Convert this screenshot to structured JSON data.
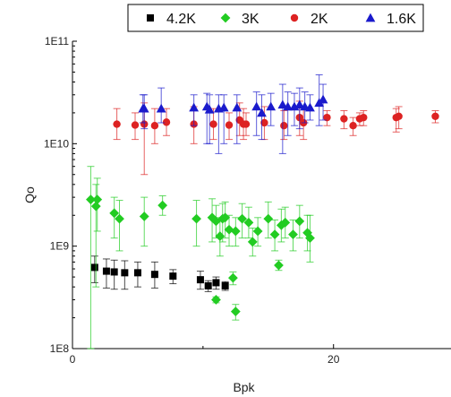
{
  "chart_data": {
    "type": "scatter",
    "xlabel": "Bpk",
    "ylabel": "Qo",
    "xlim": [
      0,
      29
    ],
    "ylim": [
      100000000.0,
      100000000000.0
    ],
    "yscale": "log",
    "x_ticks": [
      0,
      20
    ],
    "x_tick_labels": [
      "0",
      "20"
    ],
    "y_ticks": [
      100000000.0,
      1000000000.0,
      10000000000.0,
      100000000000.0
    ],
    "y_tick_labels": [
      "1E8",
      "1E9",
      "1E10",
      "1E11"
    ],
    "grid": false,
    "legend_position": "top-right",
    "series": [
      {
        "name": "4.2K",
        "marker": "square",
        "color": "#000000",
        "points": [
          {
            "x": 1.7,
            "y": 620000000.0,
            "ylo": 440000000.0,
            "yhi": 800000000.0
          },
          {
            "x": 2.6,
            "y": 570000000.0,
            "ylo": 390000000.0,
            "yhi": 750000000.0
          },
          {
            "x": 3.2,
            "y": 560000000.0,
            "ylo": 380000000.0,
            "yhi": 730000000.0
          },
          {
            "x": 4.0,
            "y": 550000000.0,
            "ylo": 380000000.0,
            "yhi": 720000000.0
          },
          {
            "x": 5.0,
            "y": 550000000.0,
            "ylo": 400000000.0,
            "yhi": 700000000.0
          },
          {
            "x": 6.3,
            "y": 530000000.0,
            "ylo": 390000000.0,
            "yhi": 700000000.0
          },
          {
            "x": 7.7,
            "y": 510000000.0,
            "ylo": 430000000.0,
            "yhi": 590000000.0
          },
          {
            "x": 9.8,
            "y": 470000000.0,
            "ylo": 380000000.0,
            "yhi": 570000000.0
          },
          {
            "x": 10.4,
            "y": 410000000.0,
            "ylo": 360000000.0,
            "yhi": 460000000.0
          },
          {
            "x": 11.0,
            "y": 440000000.0,
            "ylo": 380000000.0,
            "yhi": 500000000.0
          },
          {
            "x": 11.7,
            "y": 410000000.0,
            "ylo": 370000000.0,
            "yhi": 450000000.0
          }
        ]
      },
      {
        "name": "3K",
        "marker": "diamond",
        "color": "#22cc22",
        "points": [
          {
            "x": 1.4,
            "y": 2850000000.0,
            "ylo": 100000000.0,
            "yhi": 6000000000.0
          },
          {
            "x": 1.8,
            "y": 2450000000.0,
            "ylo": 400000000.0,
            "yhi": 4000000000.0
          },
          {
            "x": 1.9,
            "y": 2850000000.0,
            "ylo": 1400000000.0,
            "yhi": 4600000000.0
          },
          {
            "x": 3.2,
            "y": 2100000000.0,
            "ylo": 1200000000.0,
            "yhi": 3000000000.0
          },
          {
            "x": 3.6,
            "y": 1850000000.0,
            "ylo": 900000000.0,
            "yhi": 2800000000.0
          },
          {
            "x": 5.5,
            "y": 1950000000.0,
            "ylo": 1000000000.0,
            "yhi": 3000000000.0
          },
          {
            "x": 6.9,
            "y": 2500000000.0,
            "ylo": 2000000000.0,
            "yhi": 3100000000.0
          },
          {
            "x": 9.5,
            "y": 1850000000.0,
            "ylo": 1000000000.0,
            "yhi": 2800000000.0
          },
          {
            "x": 10.7,
            "y": 1900000000.0,
            "ylo": 1100000000.0,
            "yhi": 2900000000.0
          },
          {
            "x": 11.0,
            "y": 1750000000.0,
            "ylo": 1200000000.0,
            "yhi": 2500000000.0
          },
          {
            "x": 11.3,
            "y": 1250000000.0,
            "ylo": 800000000.0,
            "yhi": 1900000000.0
          },
          {
            "x": 11.5,
            "y": 1850000000.0,
            "ylo": 1100000000.0,
            "yhi": 2600000000.0
          },
          {
            "x": 11.7,
            "y": 1900000000.0,
            "ylo": 1200000000.0,
            "yhi": 2700000000.0
          },
          {
            "x": 12.0,
            "y": 1450000000.0,
            "ylo": 1000000000.0,
            "yhi": 2000000000.0
          },
          {
            "x": 12.5,
            "y": 1400000000.0,
            "ylo": 1000000000.0,
            "yhi": 1900000000.0
          },
          {
            "x": 13.0,
            "y": 1850000000.0,
            "ylo": 1200000000.0,
            "yhi": 2600000000.0
          },
          {
            "x": 13.5,
            "y": 1700000000.0,
            "ylo": 1200000000.0,
            "yhi": 2400000000.0
          },
          {
            "x": 13.8,
            "y": 1100000000.0,
            "ylo": 800000000.0,
            "yhi": 1500000000.0
          },
          {
            "x": 14.2,
            "y": 1400000000.0,
            "ylo": 1000000000.0,
            "yhi": 1900000000.0
          },
          {
            "x": 15.0,
            "y": 1850000000.0,
            "ylo": 1200000000.0,
            "yhi": 2700000000.0
          },
          {
            "x": 15.5,
            "y": 1300000000.0,
            "ylo": 900000000.0,
            "yhi": 1800000000.0
          },
          {
            "x": 15.8,
            "y": 650000000.0,
            "ylo": 580000000.0,
            "yhi": 730000000.0
          },
          {
            "x": 16.0,
            "y": 1600000000.0,
            "ylo": 1100000000.0,
            "yhi": 2300000000.0
          },
          {
            "x": 16.3,
            "y": 1700000000.0,
            "ylo": 1200000000.0,
            "yhi": 2400000000.0
          },
          {
            "x": 16.9,
            "y": 1300000000.0,
            "ylo": 900000000.0,
            "yhi": 1800000000.0
          },
          {
            "x": 17.4,
            "y": 1750000000.0,
            "ylo": 1200000000.0,
            "yhi": 2500000000.0
          },
          {
            "x": 18.0,
            "y": 1350000000.0,
            "ylo": 900000000.0,
            "yhi": 2000000000.0
          },
          {
            "x": 18.2,
            "y": 1200000000.0,
            "ylo": 700000000.0,
            "yhi": 2000000000.0
          },
          {
            "x": 11.0,
            "y": 300000000.0,
            "ylo": 280000000.0,
            "yhi": 320000000.0
          },
          {
            "x": 12.3,
            "y": 490000000.0,
            "ylo": 420000000.0,
            "yhi": 560000000.0
          },
          {
            "x": 12.5,
            "y": 230000000.0,
            "ylo": 190000000.0,
            "yhi": 270000000.0
          }
        ]
      },
      {
        "name": "2K",
        "marker": "circle",
        "color": "#dd2222",
        "points": [
          {
            "x": 3.4,
            "y": 15500000000.0,
            "ylo": 11000000000.0,
            "yhi": 22000000000.0
          },
          {
            "x": 4.8,
            "y": 15200000000.0,
            "ylo": 11000000000.0,
            "yhi": 20000000000.0
          },
          {
            "x": 5.5,
            "y": 15500000000.0,
            "ylo": 5000000000.0,
            "yhi": 25000000000.0
          },
          {
            "x": 6.3,
            "y": 15000000000.0,
            "ylo": 10000000000.0,
            "yhi": 22000000000.0
          },
          {
            "x": 7.2,
            "y": 16200000000.0,
            "ylo": 12000000000.0,
            "yhi": 22000000000.0
          },
          {
            "x": 9.3,
            "y": 15500000000.0,
            "ylo": 10000000000.0,
            "yhi": 23000000000.0
          },
          {
            "x": 10.8,
            "y": 15500000000.0,
            "ylo": 11000000000.0,
            "yhi": 22000000000.0
          },
          {
            "x": 12.0,
            "y": 15200000000.0,
            "ylo": 11000000000.0,
            "yhi": 20000000000.0
          },
          {
            "x": 12.8,
            "y": 17000000000.0,
            "ylo": 12000000000.0,
            "yhi": 25000000000.0
          },
          {
            "x": 13.1,
            "y": 15500000000.0,
            "ylo": 11000000000.0,
            "yhi": 22000000000.0
          },
          {
            "x": 13.3,
            "y": 15500000000.0,
            "ylo": 12000000000.0,
            "yhi": 20000000000.0
          },
          {
            "x": 14.7,
            "y": 16000000000.0,
            "ylo": 11000000000.0,
            "yhi": 23000000000.0
          },
          {
            "x": 16.2,
            "y": 15000000000.0,
            "ylo": 11000000000.0,
            "yhi": 21000000000.0
          },
          {
            "x": 17.4,
            "y": 18000000000.0,
            "ylo": 12000000000.0,
            "yhi": 26000000000.0
          },
          {
            "x": 17.7,
            "y": 16000000000.0,
            "ylo": 11000000000.0,
            "yhi": 23000000000.0
          },
          {
            "x": 19.5,
            "y": 18000000000.0,
            "ylo": 15000000000.0,
            "yhi": 21000000000.0
          },
          {
            "x": 20.8,
            "y": 17500000000.0,
            "ylo": 14000000000.0,
            "yhi": 21000000000.0
          },
          {
            "x": 21.5,
            "y": 15000000000.0,
            "ylo": 12000000000.0,
            "yhi": 18000000000.0
          },
          {
            "x": 22.0,
            "y": 17500000000.0,
            "ylo": 15000000000.0,
            "yhi": 20000000000.0
          },
          {
            "x": 22.3,
            "y": 18000000000.0,
            "ylo": 15000000000.0,
            "yhi": 21000000000.0
          },
          {
            "x": 24.8,
            "y": 18000000000.0,
            "ylo": 13000000000.0,
            "yhi": 22000000000.0
          },
          {
            "x": 25.0,
            "y": 18500000000.0,
            "ylo": 14000000000.0,
            "yhi": 23000000000.0
          },
          {
            "x": 27.8,
            "y": 18500000000.0,
            "ylo": 16000000000.0,
            "yhi": 21000000000.0
          }
        ]
      },
      {
        "name": "1.6K",
        "marker": "triangle",
        "color": "#1a1acc",
        "points": [
          {
            "x": 5.4,
            "y": 22000000000.0,
            "ylo": 16000000000.0,
            "yhi": 30000000000.0
          },
          {
            "x": 5.5,
            "y": 22000000000.0,
            "ylo": 14000000000.0,
            "yhi": 30000000000.0
          },
          {
            "x": 6.8,
            "y": 22000000000.0,
            "ylo": 16000000000.0,
            "yhi": 35000000000.0
          },
          {
            "x": 9.3,
            "y": 22500000000.0,
            "ylo": 15000000000.0,
            "yhi": 30000000000.0
          },
          {
            "x": 10.3,
            "y": 23000000000.0,
            "ylo": 10000000000.0,
            "yhi": 31000000000.0
          },
          {
            "x": 10.5,
            "y": 21500000000.0,
            "ylo": 10000000000.0,
            "yhi": 30000000000.0
          },
          {
            "x": 11.2,
            "y": 22000000000.0,
            "ylo": 8000000000.0,
            "yhi": 30000000000.0
          },
          {
            "x": 11.6,
            "y": 22500000000.0,
            "ylo": 10000000000.0,
            "yhi": 30000000000.0
          },
          {
            "x": 12.6,
            "y": 22500000000.0,
            "ylo": 10000000000.0,
            "yhi": 30000000000.0
          },
          {
            "x": 14.1,
            "y": 23000000000.0,
            "ylo": 12000000000.0,
            "yhi": 32000000000.0
          },
          {
            "x": 14.5,
            "y": 20000000000.0,
            "ylo": 11000000000.0,
            "yhi": 30000000000.0
          },
          {
            "x": 15.2,
            "y": 23000000000.0,
            "ylo": 15000000000.0,
            "yhi": 31000000000.0
          },
          {
            "x": 16.1,
            "y": 24000000000.0,
            "ylo": 8000000000.0,
            "yhi": 38000000000.0
          },
          {
            "x": 16.5,
            "y": 23000000000.0,
            "ylo": 12000000000.0,
            "yhi": 32000000000.0
          },
          {
            "x": 17.0,
            "y": 23000000000.0,
            "ylo": 15000000000.0,
            "yhi": 31000000000.0
          },
          {
            "x": 17.4,
            "y": 24000000000.0,
            "ylo": 14000000000.0,
            "yhi": 35000000000.0
          },
          {
            "x": 17.8,
            "y": 23000000000.0,
            "ylo": 16000000000.0,
            "yhi": 32000000000.0
          },
          {
            "x": 18.2,
            "y": 22500000000.0,
            "ylo": 17000000000.0,
            "yhi": 30000000000.0
          },
          {
            "x": 18.9,
            "y": 25000000000.0,
            "ylo": 15000000000.0,
            "yhi": 47000000000.0
          },
          {
            "x": 19.2,
            "y": 27000000000.0,
            "ylo": 17000000000.0,
            "yhi": 38000000000.0
          }
        ]
      }
    ]
  }
}
